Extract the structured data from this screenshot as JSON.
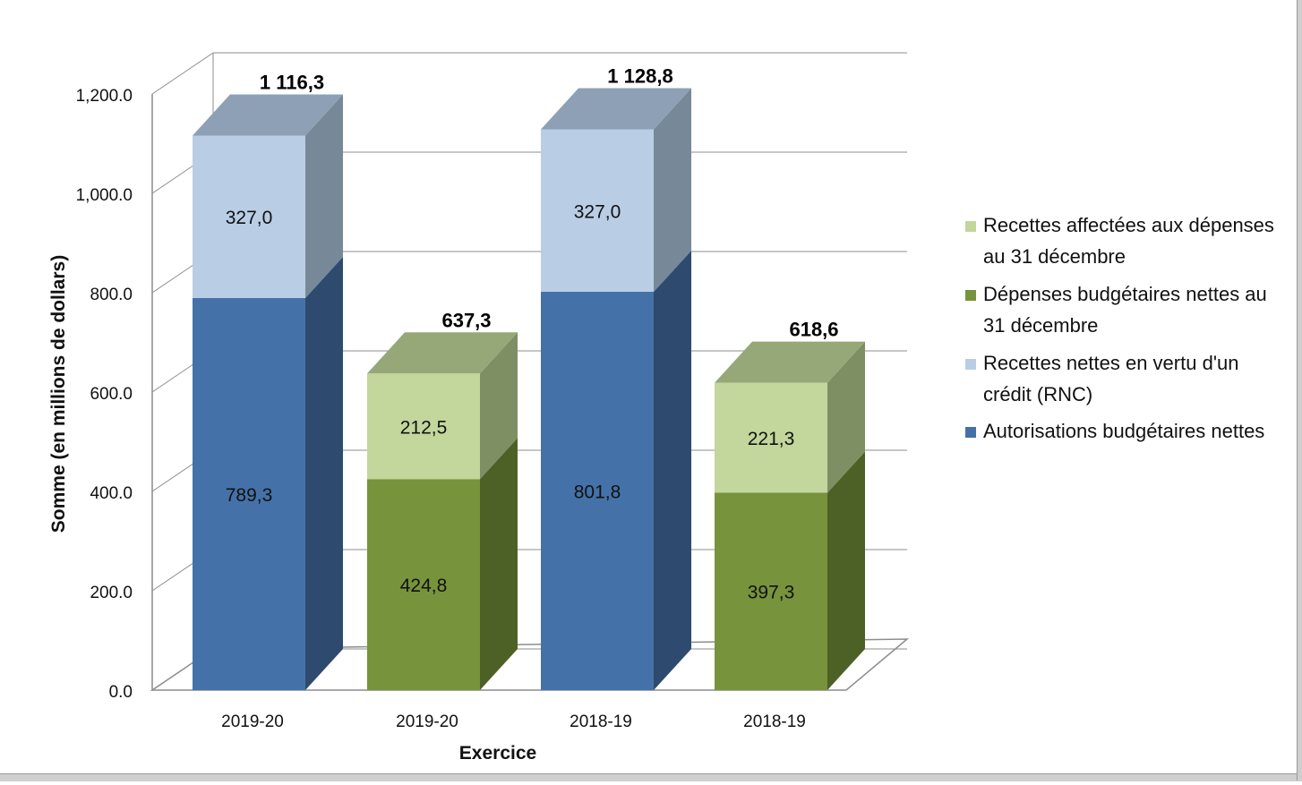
{
  "chart_data": {
    "type": "bar",
    "stacked": true,
    "three_d": true,
    "title": "",
    "xlabel": "Exercice",
    "ylabel": "Somme (en millions de dollars)",
    "ylim": [
      0,
      1200
    ],
    "yticks": [
      0,
      200,
      400,
      600,
      800,
      1000,
      1200
    ],
    "ytick_labels": [
      "0.0",
      "200.0",
      "400.0",
      "600.0",
      "800.0",
      "1,000.0",
      "1,200.0"
    ],
    "grid": true,
    "legend_position": "right",
    "categories": [
      "2019-20",
      "2019-20",
      "2018-19",
      "2018-19"
    ],
    "series": [
      {
        "name": "Autorisations budgétaires nettes",
        "color": "#4472a8",
        "values": [
          789.3,
          null,
          801.8,
          null
        ],
        "labels": [
          "789,3",
          "",
          "801,8",
          ""
        ]
      },
      {
        "name": "Recettes nettes en vertu d'un crédit (RNC)",
        "color": "#b9cde5",
        "values": [
          327.0,
          null,
          327.0,
          null
        ],
        "labels": [
          "327,0",
          "",
          "327,0",
          ""
        ]
      },
      {
        "name": "Dépenses budgétaires nettes au 31 décembre",
        "color": "#77933c",
        "values": [
          null,
          424.8,
          null,
          397.3
        ],
        "labels": [
          "",
          "424,8",
          "",
          "397,3"
        ]
      },
      {
        "name": "Recettes affectées aux dépenses au 31 décembre",
        "color": "#c3d69b",
        "values": [
          null,
          212.5,
          null,
          221.3
        ],
        "labels": [
          "",
          "212,5",
          "",
          "221,3"
        ]
      }
    ],
    "totals": [
      1116.3,
      637.3,
      1128.8,
      618.6
    ],
    "total_labels": [
      "1 116,3",
      "637,3",
      "1 128,8",
      "618,6"
    ],
    "legend": [
      {
        "lines": [
          "Recettes affectées aux dépenses",
          "au 31 décembre"
        ],
        "color": "#c3d69b"
      },
      {
        "lines": [
          "Dépenses budgétaires nettes au",
          "31 décembre"
        ],
        "color": "#77933c"
      },
      {
        "lines": [
          "Recettes nettes en vertu d'un",
          "crédit (RNC)"
        ],
        "color": "#b9cde5"
      },
      {
        "lines": [
          "Autorisations budgétaires nettes"
        ],
        "color": "#4472a8"
      }
    ],
    "cap_colors": {
      "blue": "#8ea0b6",
      "green": "#97a878"
    }
  }
}
